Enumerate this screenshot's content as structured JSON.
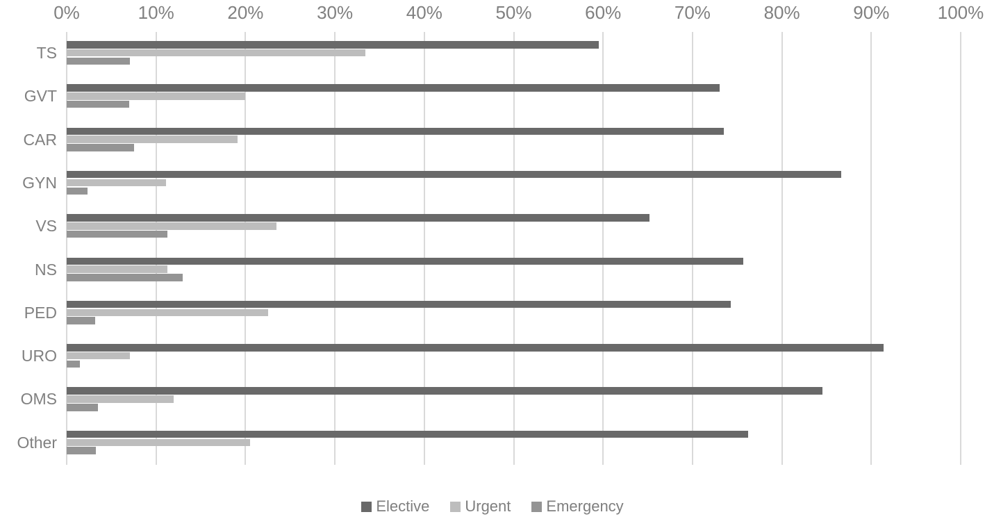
{
  "chart_data": {
    "type": "bar",
    "orientation": "horizontal",
    "title": "",
    "xlabel": "",
    "ylabel": "",
    "categories": [
      "TS",
      "GVT",
      "CAR",
      "GYN",
      "VS",
      "NS",
      "PED",
      "URO",
      "OMS",
      "Other"
    ],
    "series": [
      {
        "name": "Elective",
        "color": "#696969",
        "values": [
          59.5,
          73.0,
          73.5,
          86.6,
          65.2,
          75.7,
          74.3,
          91.4,
          84.5,
          76.2
        ]
      },
      {
        "name": "Urgent",
        "color": "#bdbdbd",
        "values": [
          33.4,
          20.0,
          19.1,
          11.1,
          23.5,
          11.3,
          22.5,
          7.1,
          12.0,
          20.5
        ]
      },
      {
        "name": "Emergency",
        "color": "#949494",
        "values": [
          7.1,
          7.0,
          7.5,
          2.3,
          11.3,
          13.0,
          3.2,
          1.5,
          3.5,
          3.3
        ]
      }
    ],
    "xlim": [
      0,
      100
    ],
    "x_tick_labels": [
      "0%",
      "10%",
      "20%",
      "30%",
      "40%",
      "50%",
      "60%",
      "70%",
      "80%",
      "90%",
      "100%"
    ],
    "grid": "vertical",
    "legend_position": "bottom",
    "colors": {
      "axis_text": "#808080",
      "legend_text": "#7f7f7f",
      "gridline": "#d9d9d9",
      "background": "#ffffff"
    }
  }
}
